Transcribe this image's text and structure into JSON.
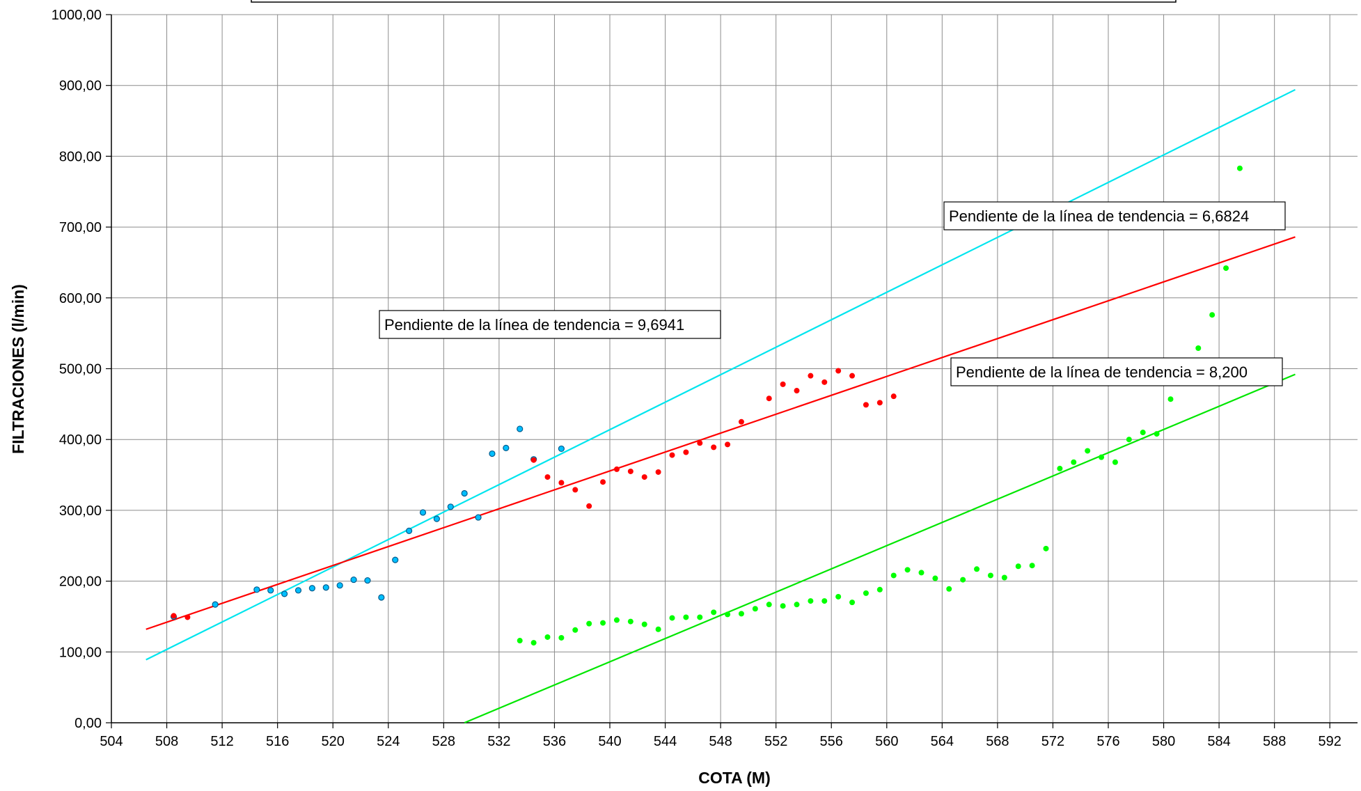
{
  "chart_data": {
    "type": "scatter",
    "xlabel": "COTA (M)",
    "ylabel": "FILTRACIONES (l/min)",
    "xlim": [
      504,
      594
    ],
    "ylim": [
      0,
      1000
    ],
    "x_ticks": [
      "504",
      "508",
      "512",
      "516",
      "520",
      "524",
      "528",
      "532",
      "536",
      "540",
      "544",
      "548",
      "552",
      "556",
      "560",
      "564",
      "568",
      "572",
      "576",
      "580",
      "584",
      "588",
      "592"
    ],
    "y_ticks": [
      "0,00",
      "100,00",
      "200,00",
      "300,00",
      "400,00",
      "500,00",
      "600,00",
      "700,00",
      "800,00",
      "900,00",
      "1000,00"
    ],
    "grid": true,
    "annotations": [
      "Pendiente de la línea de tendencia = 6,6824",
      "Pendiente de la línea de tendencia = 9,6941",
      "Pendiente de la línea de tendencia = 8,200"
    ],
    "series": [
      {
        "color": "#00BFFF",
        "marker": "ringed-dot",
        "points": [
          [
            508.5,
            150
          ],
          [
            511.5,
            167
          ],
          [
            514.5,
            188
          ],
          [
            515.5,
            187
          ],
          [
            516.5,
            182
          ],
          [
            517.5,
            187
          ],
          [
            518.5,
            190
          ],
          [
            519.5,
            191
          ],
          [
            520.5,
            194
          ],
          [
            521.5,
            202
          ],
          [
            522.5,
            201
          ],
          [
            523.5,
            177
          ],
          [
            524.5,
            230
          ],
          [
            525.5,
            271
          ],
          [
            526.5,
            297
          ],
          [
            527.5,
            288
          ],
          [
            528.5,
            305
          ],
          [
            529.5,
            324
          ],
          [
            530.5,
            290
          ],
          [
            531.5,
            380
          ],
          [
            532.5,
            388
          ],
          [
            533.5,
            415
          ],
          [
            534.5,
            372
          ],
          [
            536.5,
            387
          ]
        ]
      },
      {
        "color": "#FF0000",
        "marker": "dot",
        "points": [
          [
            508.5,
            151
          ],
          [
            509.5,
            149
          ],
          [
            534.5,
            371
          ],
          [
            535.5,
            347
          ],
          [
            536.5,
            339
          ],
          [
            537.5,
            329
          ],
          [
            538.5,
            306
          ],
          [
            539.5,
            340
          ],
          [
            540.5,
            358
          ],
          [
            541.5,
            355
          ],
          [
            542.5,
            347
          ],
          [
            543.5,
            354
          ],
          [
            544.5,
            378
          ],
          [
            545.5,
            382
          ],
          [
            546.5,
            395
          ],
          [
            547.5,
            389
          ],
          [
            548.5,
            393
          ],
          [
            549.5,
            425
          ],
          [
            551.5,
            458
          ],
          [
            552.5,
            478
          ],
          [
            553.5,
            469
          ],
          [
            554.5,
            490
          ],
          [
            555.5,
            481
          ],
          [
            556.5,
            497
          ],
          [
            557.5,
            490
          ],
          [
            558.5,
            449
          ],
          [
            559.5,
            452
          ],
          [
            560.5,
            461
          ]
        ]
      },
      {
        "color": "#00FF00",
        "marker": "dot",
        "points": [
          [
            533.5,
            116
          ],
          [
            534.5,
            113
          ],
          [
            535.5,
            121
          ],
          [
            536.5,
            120
          ],
          [
            537.5,
            131
          ],
          [
            538.5,
            140
          ],
          [
            539.5,
            141
          ],
          [
            540.5,
            145
          ],
          [
            541.5,
            143
          ],
          [
            542.5,
            139
          ],
          [
            543.5,
            132
          ],
          [
            544.5,
            148
          ],
          [
            545.5,
            149
          ],
          [
            546.5,
            149
          ],
          [
            547.5,
            156
          ],
          [
            548.5,
            153
          ],
          [
            549.5,
            154
          ],
          [
            550.5,
            161
          ],
          [
            551.5,
            167
          ],
          [
            552.5,
            165
          ],
          [
            553.5,
            167
          ],
          [
            554.5,
            172
          ],
          [
            555.5,
            172
          ],
          [
            556.5,
            178
          ],
          [
            557.5,
            170
          ],
          [
            558.5,
            183
          ],
          [
            559.5,
            188
          ],
          [
            560.5,
            208
          ],
          [
            561.5,
            216
          ],
          [
            562.5,
            212
          ],
          [
            563.5,
            204
          ],
          [
            564.5,
            189
          ],
          [
            565.5,
            202
          ],
          [
            566.5,
            217
          ],
          [
            567.5,
            208
          ],
          [
            568.5,
            205
          ],
          [
            569.5,
            221
          ],
          [
            570.5,
            222
          ],
          [
            571.5,
            246
          ],
          [
            572.5,
            359
          ],
          [
            573.5,
            368
          ],
          [
            574.5,
            384
          ],
          [
            575.5,
            375
          ],
          [
            576.5,
            368
          ],
          [
            577.5,
            400
          ],
          [
            578.5,
            410
          ],
          [
            579.5,
            408
          ],
          [
            580.5,
            457
          ],
          [
            581.5,
            489
          ],
          [
            582.5,
            529
          ],
          [
            583.5,
            576
          ],
          [
            584.5,
            642
          ],
          [
            585.5,
            783
          ]
        ]
      }
    ],
    "trendlines": [
      {
        "color": "#00E5EE",
        "slope": 9.6941,
        "x_range": [
          506.5,
          589.5
        ],
        "y_range": [
          89,
          894
        ]
      },
      {
        "color": "#FF0000",
        "slope": 6.6824,
        "x_range": [
          506.5,
          589.5
        ],
        "y_range": [
          132,
          686
        ]
      },
      {
        "color": "#00E600",
        "slope": 8.2,
        "x_range": [
          529.5,
          589.5
        ],
        "y_range": [
          0,
          492
        ]
      }
    ]
  }
}
